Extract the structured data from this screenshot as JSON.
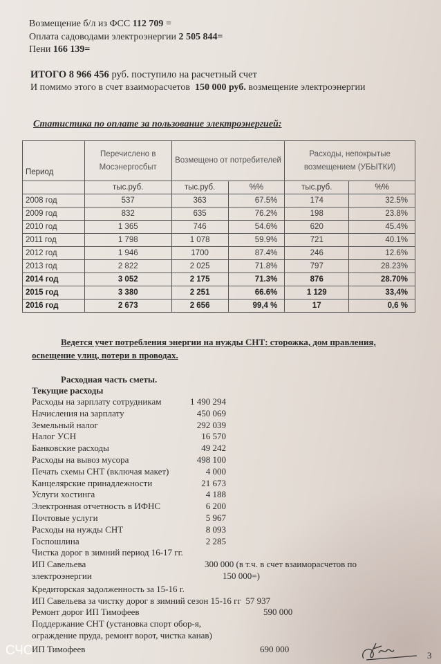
{
  "intro": {
    "line1_label": "Возмещение б/л из ФСС",
    "line1_value": "112 709",
    "line1_suffix": "=",
    "line2_label": "Оплата садоводами электроэнергии",
    "line2_value": "2 505 844=",
    "line3_label": "Пени",
    "line3_value": "166 139=",
    "total_label": "ИТОГО 8 966  456",
    "total_suffix": "руб. поступило на расчетный счет",
    "extra_prefix": "И помимо этого в счет взаиморасчетов",
    "extra_value": "150 000 руб.",
    "extra_suffix": "возмещение электроэнергии"
  },
  "stats": {
    "title": "Статистика по оплате за пользование электроэнергией:",
    "headers": {
      "period": "Период",
      "transferred": "Перечислено в Мосэнергосбыт",
      "reimbursed": "Возмещено от потребителей",
      "losses": "Расходы, непокрытые возмещением (УБЫТКИ)",
      "unit": "тыс.руб.",
      "pct": "%%"
    },
    "rows": [
      {
        "period": "2008 год",
        "transferred": "537",
        "reimbursed": "363",
        "reimbursed_pct": "67.5%",
        "losses": "174",
        "losses_pct": "32.5%",
        "bold": false
      },
      {
        "period": "2009 год",
        "transferred": "832",
        "reimbursed": "635",
        "reimbursed_pct": "76.2%",
        "losses": "198",
        "losses_pct": "23.8%",
        "bold": false
      },
      {
        "period": "2010 год",
        "transferred": "1 365",
        "reimbursed": "746",
        "reimbursed_pct": "54.6%",
        "losses": "620",
        "losses_pct": "45.4%",
        "bold": false
      },
      {
        "period": "2011 год",
        "transferred": "1 798",
        "reimbursed": "1 078",
        "reimbursed_pct": "59.9%",
        "losses": "721",
        "losses_pct": "40.1%",
        "bold": false
      },
      {
        "period": "2012 год",
        "transferred": "1 946",
        "reimbursed": "1700",
        "reimbursed_pct": "87.4%",
        "losses": "246",
        "losses_pct": "12.6%",
        "bold": false
      },
      {
        "period": "2013 год",
        "transferred": "2 822",
        "reimbursed": "2 025",
        "reimbursed_pct": "71.8%",
        "losses": "797",
        "losses_pct": "28.23%",
        "bold": false
      },
      {
        "period": "2014 год",
        "transferred": "3 052",
        "reimbursed": "2 175",
        "reimbursed_pct": "71.3%",
        "losses": "876",
        "losses_pct": "28.70%",
        "bold": true
      },
      {
        "period": "2015 год",
        "transferred": "3 380",
        "reimbursed": "2 251",
        "reimbursed_pct": "66.6%",
        "losses": "1 129",
        "losses_pct": "33,4%",
        "bold": true
      },
      {
        "period": "2016 год",
        "transferred": "2 673",
        "reimbursed": "2 656",
        "reimbursed_pct": "99,4 %",
        "losses": "17",
        "losses_pct": "0,6 %",
        "bold": true
      }
    ]
  },
  "note": {
    "line1": "Ведется учет потребления энергии на нужды СНТ: сторожка, дом правления,",
    "line2": "освещение улиц, потери в проводах."
  },
  "budget": {
    "title": "Расходная часть сметы.",
    "subtitle": "Текущие расходы",
    "items": [
      {
        "label": "Расходы на зарплату сотрудникам",
        "value": "1 490 294"
      },
      {
        "label": "Начисления на зарплату",
        "value": "450 069"
      },
      {
        "label": "Земельный налог",
        "value": "292 039"
      },
      {
        "label": "Налог УСН",
        "value": "16 570"
      },
      {
        "label": "Банковские расходы",
        "value": "49 242"
      },
      {
        "label": "Расходы на вывоз мусора",
        "value": "498 100"
      },
      {
        "label": "Печать схемы СНТ (включая макет)",
        "value": "4 000"
      },
      {
        "label": "Канцелярские принадлежности",
        "value": "21 673"
      },
      {
        "label": "Услуги хостинга",
        "value": "4 188"
      },
      {
        "label": "Электронная отчетность в ИФНС",
        "value": "6 200"
      },
      {
        "label": "Почтовые услуги",
        "value": "5 967"
      },
      {
        "label": "Расходы на нужды СНТ",
        "value": "8 093"
      },
      {
        "label": "Госпошлина",
        "value": "2 285"
      }
    ],
    "road_title": "Чистка дорог в зимний период  16-17 гг.",
    "savelieva_label": "ИП Савельева",
    "savelieva_value": "300 000 (в т.ч. в счет взаиморасчетов по",
    "savelieva_label2": "электроэнергии",
    "savelieva_value2": "150 000=)",
    "debt_title": "Кредиторская задолженность за 15-16 г.",
    "debt_item": "ИП Савельева за чистку дорог в зимний сезон 15-16 гг",
    "debt_value": "57 937",
    "repair_label": "Ремонт дорог  ИП Тимофеев",
    "repair_value": "590 000",
    "support_line1": "Поддержание СНТ  (установка спорт обор-я,",
    "support_line2": "ограждение пруда, ремонт ворот, чистка канав)",
    "support_label": "ИП Тимофеев",
    "support_value": "690 000"
  },
  "page_number": "3",
  "watermark": "СЧС"
}
